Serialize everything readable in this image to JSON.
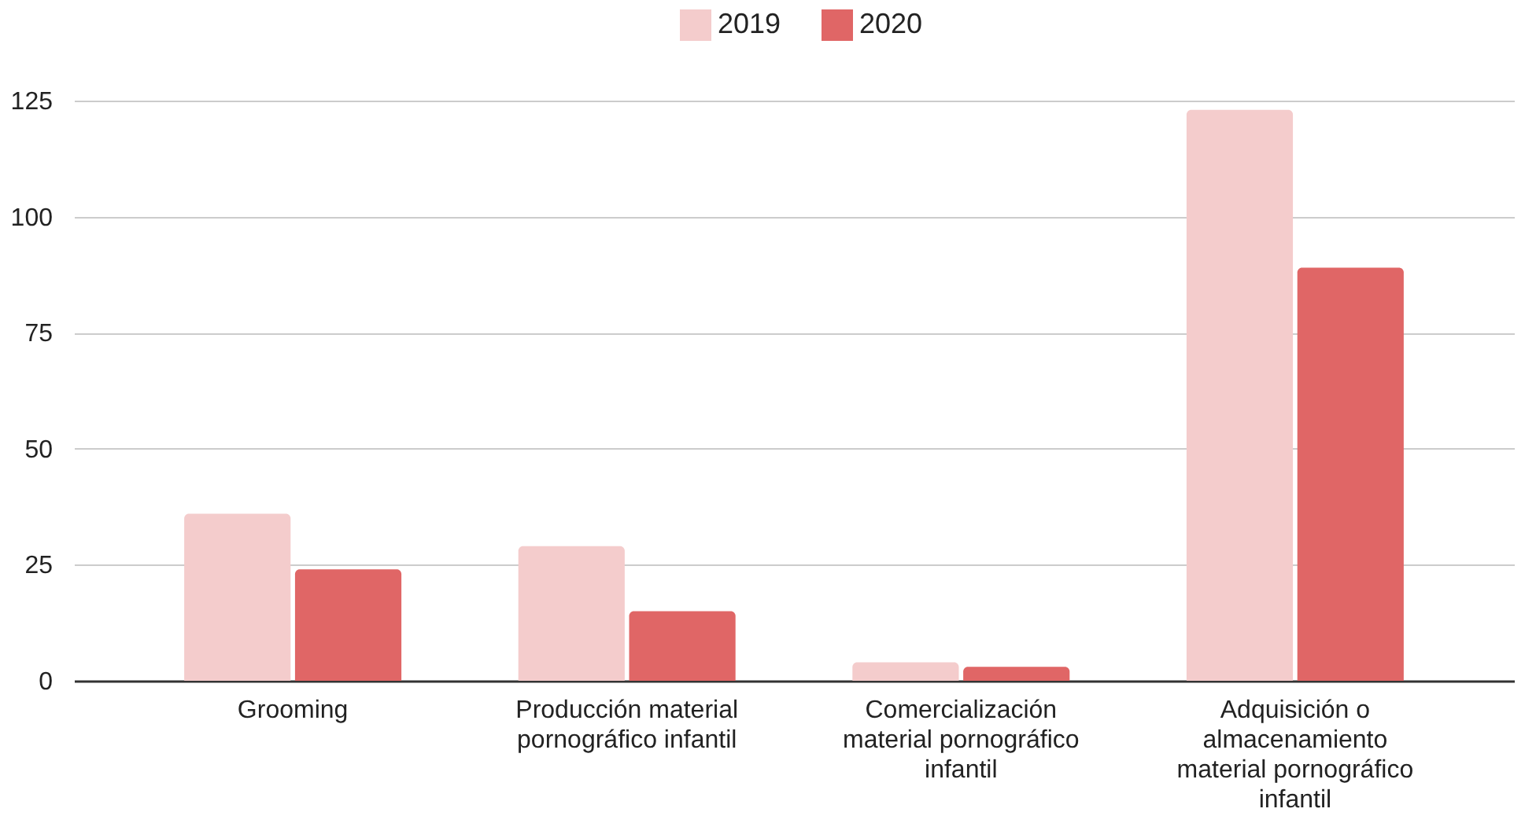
{
  "chart_data": {
    "type": "bar",
    "categories": [
      "Grooming",
      "Producción material pornográfico infantil",
      "Comercialización material pornográfico infantil",
      "Adquisición o almacenamiento material pornográfico infantil"
    ],
    "series": [
      {
        "name": "2019",
        "color": "#f4cccc",
        "values": [
          36,
          29,
          4,
          123
        ]
      },
      {
        "name": "2020",
        "color": "#e06666",
        "values": [
          24,
          15,
          3,
          89
        ]
      }
    ],
    "ylim": [
      0,
      125
    ],
    "yticks": [
      0,
      25,
      50,
      75,
      100,
      125
    ],
    "grid": "y",
    "legend": "top"
  }
}
